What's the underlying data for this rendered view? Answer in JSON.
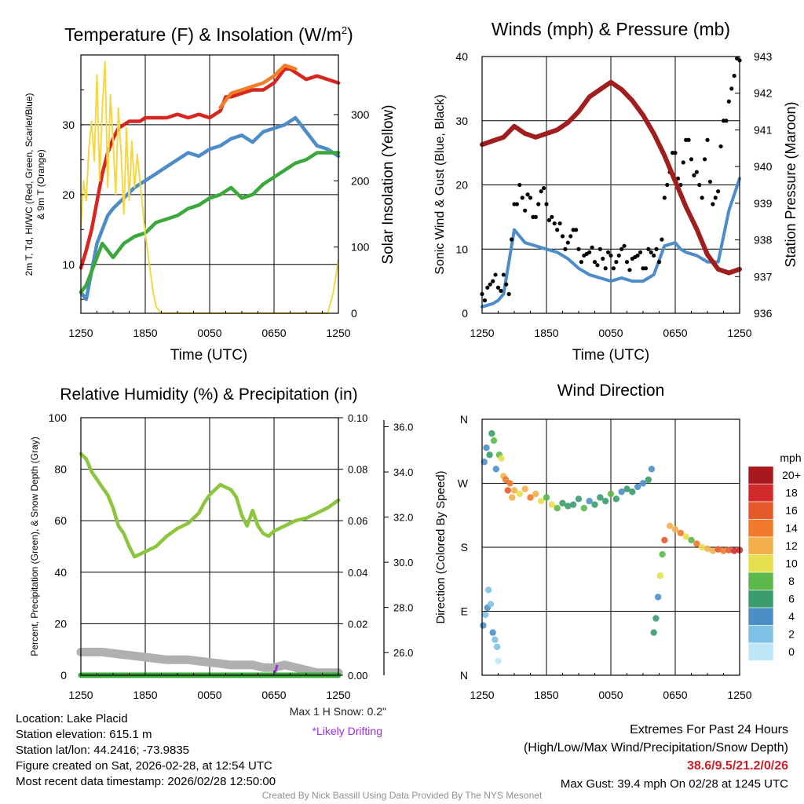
{
  "colors": {
    "t2m": "#d7261e",
    "t9m": "#f07d2a",
    "dewpoint": "#4d8cc8",
    "windchill": "#3aa83a",
    "insolation": "#f5d744",
    "sonic": "#4d8cc8",
    "gust": "#000000",
    "pressure": "#a11e1e",
    "rh": "#8cc63e",
    "precip": "#3aa83a",
    "snow": "#b0b0b0",
    "drift": "#9b30d9",
    "extremes": "#c8202a",
    "credit": "#909090"
  },
  "x_ticks": [
    "1250",
    "1850",
    "0050",
    "0650",
    "1250"
  ],
  "chart_data": [
    {
      "id": "temperature",
      "type": "line",
      "title": "Temperature (F) & Insolation (W/m²)",
      "title_main": "Temperature (F) & Insolation (W/m",
      "title_sup": "2",
      "title_end": ")",
      "xlabel": "Time (UTC)",
      "ylabel_line1": "2m T, Td, HI/WC (Red, Green, Scarlet/Blue)",
      "ylabel_line2": "& 9m T (Orange)",
      "ylabel_right": "Solar Insolation (Yellow)",
      "xlim": [
        0,
        24
      ],
      "ylim": [
        3,
        40
      ],
      "y_ticks": [
        10,
        20,
        30
      ],
      "y2lim": [
        0,
        390
      ],
      "y2_ticks": [
        0,
        100,
        200,
        300
      ],
      "series": [
        {
          "name": "2m T",
          "color_key": "t2m",
          "axis": "left",
          "x": [
            0,
            0.5,
            1,
            1.5,
            2,
            2.5,
            3,
            3.5,
            4,
            4.5,
            5,
            5.5,
            6,
            7,
            8,
            9,
            10,
            11,
            12,
            13,
            13.5,
            14,
            15,
            16,
            17,
            18,
            18.5,
            19,
            19.5,
            20,
            21,
            22,
            23,
            24
          ],
          "values": [
            9.5,
            12,
            15,
            19,
            23,
            26,
            28,
            29.5,
            30,
            30.5,
            30.5,
            30.5,
            31,
            31,
            31,
            31.5,
            31,
            31.5,
            31,
            32,
            34,
            34,
            34.5,
            35,
            35,
            36,
            37,
            38,
            38,
            37.5,
            36.5,
            37,
            36.5,
            36
          ]
        },
        {
          "name": "9m T",
          "color_key": "t9m",
          "axis": "left",
          "x": [
            13,
            14,
            15,
            16,
            17,
            18,
            19,
            20
          ],
          "values": [
            32.5,
            34.5,
            35,
            35.5,
            36,
            37,
            38.5,
            38
          ]
        },
        {
          "name": "Dewpoint",
          "color_key": "dewpoint",
          "axis": "left",
          "x": [
            0,
            0.5,
            1,
            1.5,
            2,
            2.5,
            3,
            4,
            5,
            6,
            7,
            8,
            9,
            10,
            11,
            12,
            13,
            14,
            15,
            16,
            17,
            18,
            19,
            20,
            21,
            22,
            23,
            24
          ],
          "values": [
            6,
            5,
            9,
            13,
            15,
            17,
            18,
            19.5,
            21,
            22,
            23,
            24,
            25,
            26,
            25.5,
            26.5,
            27,
            28,
            28.5,
            27.5,
            29,
            29.5,
            30,
            31,
            29,
            27,
            26.5,
            25.5
          ]
        },
        {
          "name": "Wind Chill",
          "color_key": "windchill",
          "axis": "left",
          "x": [
            0,
            0.5,
            1,
            1.5,
            2,
            2.5,
            3,
            4,
            5,
            6,
            7,
            8,
            9,
            10,
            11,
            12,
            13,
            14,
            15,
            16,
            17,
            18,
            19,
            20,
            21,
            22,
            23,
            24
          ],
          "values": [
            6,
            7,
            9,
            11,
            13,
            12,
            11,
            13,
            14,
            14.5,
            16,
            16.5,
            17,
            18,
            18.5,
            19.5,
            20,
            21,
            19.5,
            20,
            21.5,
            22.5,
            23.5,
            24.5,
            25,
            26,
            26,
            26
          ]
        },
        {
          "name": "Solar Insolation",
          "color_key": "insolation",
          "axis": "right",
          "x": [
            0,
            0.25,
            0.5,
            0.75,
            1,
            1.25,
            1.5,
            1.75,
            2,
            2.25,
            2.5,
            2.75,
            3,
            3.25,
            3.5,
            3.75,
            4,
            4.25,
            4.5,
            4.75,
            5,
            5.25,
            5.5,
            5.75,
            6,
            6.25,
            6.5,
            6.75,
            7,
            7.5,
            8,
            23,
            23.5,
            24
          ],
          "values": [
            130,
            200,
            170,
            250,
            290,
            230,
            360,
            200,
            310,
            380,
            190,
            330,
            260,
            180,
            310,
            240,
            150,
            280,
            170,
            260,
            190,
            240,
            200,
            160,
            120,
            90,
            60,
            30,
            10,
            0,
            0,
            0,
            30,
            80
          ]
        }
      ]
    },
    {
      "id": "winds",
      "type": "line",
      "title": "Winds (mph) & Pressure (mb)",
      "xlabel": "Time (UTC)",
      "ylabel": "Sonic Wind & Gust (Blue, Black)",
      "ylabel_right": "Station Pressure (Maroon)",
      "xlim": [
        0,
        24
      ],
      "ylim": [
        0,
        40
      ],
      "y_ticks": [
        0,
        10,
        20,
        30,
        40
      ],
      "y2lim": [
        936,
        943
      ],
      "y2_ticks": [
        936,
        937,
        938,
        939,
        940,
        941,
        942,
        943
      ],
      "series": [
        {
          "name": "Sonic Wind",
          "color_key": "sonic",
          "axis": "left",
          "x": [
            0,
            1,
            1.5,
            2,
            2.5,
            3,
            4,
            5,
            6,
            7,
            8,
            9,
            10,
            11,
            12,
            13,
            14,
            15,
            16,
            17,
            18,
            18.5,
            19,
            20,
            21,
            22,
            23,
            24
          ],
          "values": [
            1,
            1.5,
            2,
            3,
            8,
            13,
            11,
            10.5,
            10,
            9.5,
            8.5,
            7,
            6,
            5.5,
            5,
            5.5,
            5,
            5,
            6,
            10.5,
            11,
            10,
            9.5,
            9,
            8,
            8,
            16,
            21
          ]
        },
        {
          "name": "Gust",
          "color_key": "gust",
          "axis": "left",
          "x": [
            0,
            0.5,
            1,
            1.5,
            2,
            2.5,
            3,
            3.5,
            4,
            4.5,
            5,
            5.5,
            6,
            6.5,
            7,
            7.5,
            8,
            8.5,
            9,
            9.5,
            10,
            10.5,
            11,
            11.5,
            12,
            12.5,
            13,
            13.5,
            14,
            14.5,
            15,
            15.5,
            16,
            16.5,
            17,
            17.5,
            18,
            18.5,
            19,
            19.5,
            20,
            20.5,
            21,
            21.5,
            22,
            22.5,
            23,
            23.5,
            24
          ],
          "values": [
            3,
            4,
            5,
            4,
            6,
            3,
            17,
            20,
            16,
            18,
            15,
            19,
            17,
            15,
            13,
            12,
            11,
            13,
            10,
            9,
            9.5,
            8,
            10,
            7,
            9,
            8,
            10,
            8,
            8.5,
            9,
            7,
            10,
            9,
            8,
            18,
            22,
            25,
            20,
            27,
            24,
            22,
            18,
            27,
            17,
            19,
            30,
            33,
            37,
            39.4
          ]
        },
        {
          "name": "Station Pressure",
          "color_key": "pressure",
          "axis": "right",
          "x": [
            0,
            1,
            2,
            3,
            4,
            5,
            6,
            7,
            8,
            9,
            10,
            11,
            12,
            13,
            14,
            15,
            16,
            17,
            18,
            19,
            20,
            21,
            22,
            23,
            24
          ],
          "values": [
            940.6,
            940.7,
            940.8,
            941.1,
            940.9,
            940.8,
            940.9,
            941.0,
            941.2,
            941.5,
            941.9,
            942.1,
            942.3,
            942.1,
            941.8,
            941.4,
            940.9,
            940.3,
            939.6,
            938.9,
            938.3,
            937.6,
            937.2,
            937.1,
            937.2
          ]
        }
      ]
    },
    {
      "id": "humidity",
      "type": "line",
      "title": "Relative Humidity (%) & Precipitation (in)",
      "xlabel": "",
      "ylabel": "Percent, Precipitation (Green), & Snow Depth (Gray)",
      "xlim": [
        0,
        24
      ],
      "ylim": [
        0,
        100
      ],
      "y_ticks": [
        0,
        20,
        40,
        60,
        80,
        100
      ],
      "y2lim": [
        0,
        0.1
      ],
      "y2_ticks": [
        "0.00",
        "0.02",
        "0.04",
        "0.06",
        "0.08",
        "0.10"
      ],
      "y3lim": [
        25,
        36.4
      ],
      "y3_ticks": [
        "26.0",
        "28.0",
        "30.0",
        "32.0",
        "34.0",
        "36.0"
      ],
      "series": [
        {
          "name": "Relative Humidity",
          "color_key": "rh",
          "axis": "left",
          "x": [
            0,
            0.5,
            1,
            1.5,
            2,
            2.5,
            3,
            3.5,
            4,
            4.5,
            5,
            5.5,
            6,
            7,
            8,
            9,
            10,
            11,
            11.5,
            12,
            12.5,
            13,
            13.5,
            14,
            14.5,
            15,
            15.5,
            16,
            16.5,
            17,
            17.5,
            18,
            19,
            20,
            21,
            22,
            23,
            24
          ],
          "values": [
            86,
            84,
            79,
            76,
            73,
            70,
            65,
            58,
            55,
            50,
            46,
            47,
            48,
            50,
            54,
            57,
            59,
            63,
            67,
            70,
            72,
            74,
            73,
            72,
            69,
            62,
            58,
            64,
            58,
            55,
            54,
            56,
            58,
            60,
            61,
            63,
            65,
            68
          ]
        },
        {
          "name": "Snow Depth",
          "color_key": "snow",
          "axis": "left",
          "x": [
            0,
            2,
            4,
            6,
            8,
            10,
            12,
            14,
            16,
            17,
            18,
            19,
            20,
            22,
            24
          ],
          "values": [
            9,
            9,
            8,
            7,
            6,
            6,
            5,
            4,
            4,
            3,
            3,
            4,
            3,
            1,
            1
          ]
        },
        {
          "name": "Precipitation",
          "color_key": "precip",
          "axis": "left",
          "x": [
            0,
            24
          ],
          "values": [
            0,
            0
          ]
        }
      ]
    },
    {
      "id": "wind_direction",
      "type": "scatter",
      "title": "Wind Direction",
      "xlabel": "",
      "ylabel": "Direction (Colored By Speed)",
      "xlim": [
        0,
        24
      ],
      "ylim": [
        0,
        360
      ],
      "y_tick_labels": [
        "N",
        "E",
        "S",
        "W",
        "N"
      ],
      "y_tick_values": [
        0,
        90,
        180,
        270,
        360
      ],
      "colorbar_title": "mph",
      "colorbar_labels": [
        "0",
        "2",
        "4",
        "6",
        "8",
        "10",
        "12",
        "14",
        "16",
        "18",
        "20+"
      ],
      "colorbar_colors": [
        "#bfe6f7",
        "#80c0e6",
        "#4c8fc7",
        "#3a9c6a",
        "#5cb84a",
        "#e6df4f",
        "#f5b04e",
        "#f07a2a",
        "#e55a2a",
        "#d2292a",
        "#a8181d"
      ],
      "x": [
        0.1,
        0.3,
        0.5,
        0.6,
        0.8,
        1.0,
        1.2,
        1.4,
        1.5,
        0.2,
        0.4,
        0.7,
        0.9,
        1.1,
        1.3,
        1.6,
        1.8,
        2.0,
        2.2,
        2.4,
        2.6,
        2.8,
        3.0,
        3.5,
        4,
        4.5,
        5,
        5.5,
        6,
        6.5,
        7,
        7.5,
        8,
        8.5,
        9,
        9.5,
        10,
        10.5,
        11,
        11.5,
        12,
        12.5,
        13,
        13.5,
        14,
        14.5,
        15,
        15.5,
        15.8,
        16,
        16.2,
        16.4,
        16.6,
        16.8,
        17,
        17.5,
        18,
        18.5,
        19,
        19.5,
        20,
        20.5,
        21,
        21.5,
        22,
        22.5,
        23,
        23.5,
        24
      ],
      "values": [
        70,
        85,
        95,
        120,
        100,
        60,
        50,
        40,
        20,
        300,
        320,
        310,
        340,
        330,
        290,
        310,
        305,
        280,
        275,
        260,
        270,
        250,
        260,
        255,
        262,
        250,
        255,
        245,
        250,
        240,
        235,
        242,
        238,
        240,
        248,
        235,
        245,
        240,
        250,
        245,
        255,
        248,
        258,
        262,
        258,
        265,
        270,
        275,
        290,
        60,
        80,
        110,
        140,
        170,
        190,
        210,
        205,
        200,
        195,
        190,
        185,
        180,
        178,
        175,
        177,
        175,
        176,
        175,
        176
      ],
      "speeds": [
        3,
        2,
        4,
        1,
        2,
        3,
        1,
        2,
        0,
        3,
        4,
        5,
        6,
        7,
        4,
        8,
        10,
        12,
        14,
        15,
        13,
        12,
        11,
        10,
        12,
        14,
        11,
        10,
        8,
        9,
        7,
        6,
        5,
        6,
        5,
        7,
        4,
        5,
        6,
        5,
        7,
        5,
        4,
        6,
        5,
        4,
        3,
        5,
        4,
        6,
        5,
        4,
        9,
        7,
        15,
        11,
        12,
        13,
        10,
        8,
        14,
        9,
        11,
        12,
        15,
        13,
        16,
        18,
        17
      ]
    }
  ],
  "snow_note": "Max 1 H Snow: 0.2\"",
  "drift_note": "*Likely Drifting",
  "station_info": {
    "location": "Location: Lake Placid",
    "elevation": "Station elevation: 615.1 m",
    "latlon": "Station lat/lon: 44.2416; -73.9835",
    "created": "Figure created on Sat, 2026-02-28, at 12:54 UTC",
    "recent": "Most recent data timestamp: 2026/02/28 12:50:00"
  },
  "extremes": {
    "title": "Extremes For Past 24 Hours",
    "subtitle": "(High/Low/Max Wind/Precipitation/Snow Depth)",
    "values": "38.6/9.5/21.2/0/26",
    "gust": "Max Gust: 39.4 mph On 02/28 at 1245 UTC"
  },
  "credit": "Created By Nick Bassill Using Data Provided By The NYS Mesonet"
}
